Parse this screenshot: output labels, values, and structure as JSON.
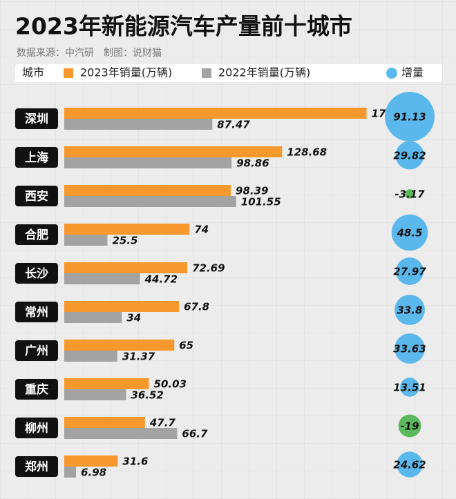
{
  "chart_data": {
    "type": "bar",
    "title": "2023年新能源汽车产量前十城市",
    "subtitle": "数据来源：中汽研　制图：说财猫",
    "category_label": "城市",
    "categories": [
      "深圳",
      "上海",
      "西安",
      "合肥",
      "长沙",
      "常州",
      "广州",
      "重庆",
      "柳州",
      "郑州"
    ],
    "series": [
      {
        "name": "2023年销量(万辆)",
        "color": "#f7982d",
        "values": [
          178.6,
          128.68,
          98.39,
          74,
          72.69,
          67.8,
          65,
          50.03,
          47.7,
          31.6
        ]
      },
      {
        "name": "2022年销量(万辆)",
        "color": "#a3a3a3",
        "values": [
          87.47,
          98.86,
          101.55,
          25.5,
          44.72,
          34,
          31.37,
          36.52,
          66.7,
          6.98
        ]
      }
    ],
    "increase": {
      "name": "增量",
      "color": "#5bb8ec",
      "negative_color": "#5cb85c",
      "values": [
        91.13,
        29.82,
        -3.17,
        48.5,
        27.97,
        33.8,
        33.63,
        13.51,
        -19,
        24.62
      ]
    },
    "xlim": [
      0,
      180
    ]
  }
}
